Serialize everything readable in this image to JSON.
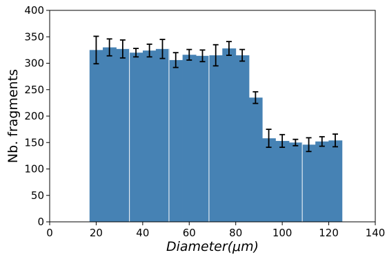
{
  "chart_data": {
    "type": "bar",
    "xlabel": "Diameter(μm)",
    "ylabel": "Nb. fragments",
    "xlim": [
      0,
      140
    ],
    "ylim": [
      0,
      400
    ],
    "xticks": [
      0,
      20,
      40,
      60,
      80,
      100,
      120,
      140
    ],
    "yticks": [
      0,
      50,
      100,
      150,
      200,
      250,
      300,
      350,
      400
    ],
    "grid": false,
    "bar_color": "#4682b4",
    "divider_color": "#ffffff",
    "errorbar_color": "#000000",
    "bars": [
      {
        "start": 17.1,
        "end": 34.3,
        "divider": false
      },
      {
        "start": 34.3,
        "end": 51.3,
        "divider": true
      },
      {
        "start": 51.3,
        "end": 68.5,
        "divider": true
      },
      {
        "start": 68.5,
        "end": 91.4,
        "divider": true
      },
      {
        "start": 91.4,
        "end": 108.6,
        "divider": false
      },
      {
        "start": 108.6,
        "end": 125.8,
        "divider": true
      }
    ],
    "points": [
      {
        "x": 20.0,
        "y": 325,
        "yerr": 26
      },
      {
        "x": 25.7,
        "y": 330,
        "yerr": 16
      },
      {
        "x": 31.4,
        "y": 327,
        "yerr": 17
      },
      {
        "x": 37.1,
        "y": 320,
        "yerr": 8
      },
      {
        "x": 42.9,
        "y": 324,
        "yerr": 12
      },
      {
        "x": 48.5,
        "y": 327,
        "yerr": 18
      },
      {
        "x": 54.2,
        "y": 306,
        "yerr": 14
      },
      {
        "x": 60.0,
        "y": 316,
        "yerr": 10
      },
      {
        "x": 65.7,
        "y": 314,
        "yerr": 11
      },
      {
        "x": 71.4,
        "y": 315,
        "yerr": 20
      },
      {
        "x": 77.1,
        "y": 328,
        "yerr": 13
      },
      {
        "x": 82.8,
        "y": 315,
        "yerr": 11
      },
      {
        "x": 88.5,
        "y": 235,
        "yerr": 11
      },
      {
        "x": 94.2,
        "y": 158,
        "yerr": 17
      },
      {
        "x": 100.0,
        "y": 153,
        "yerr": 12
      },
      {
        "x": 105.7,
        "y": 150,
        "yerr": 6
      },
      {
        "x": 111.4,
        "y": 146,
        "yerr": 13
      },
      {
        "x": 117.1,
        "y": 152,
        "yerr": 9
      },
      {
        "x": 122.8,
        "y": 154,
        "yerr": 12
      }
    ]
  }
}
